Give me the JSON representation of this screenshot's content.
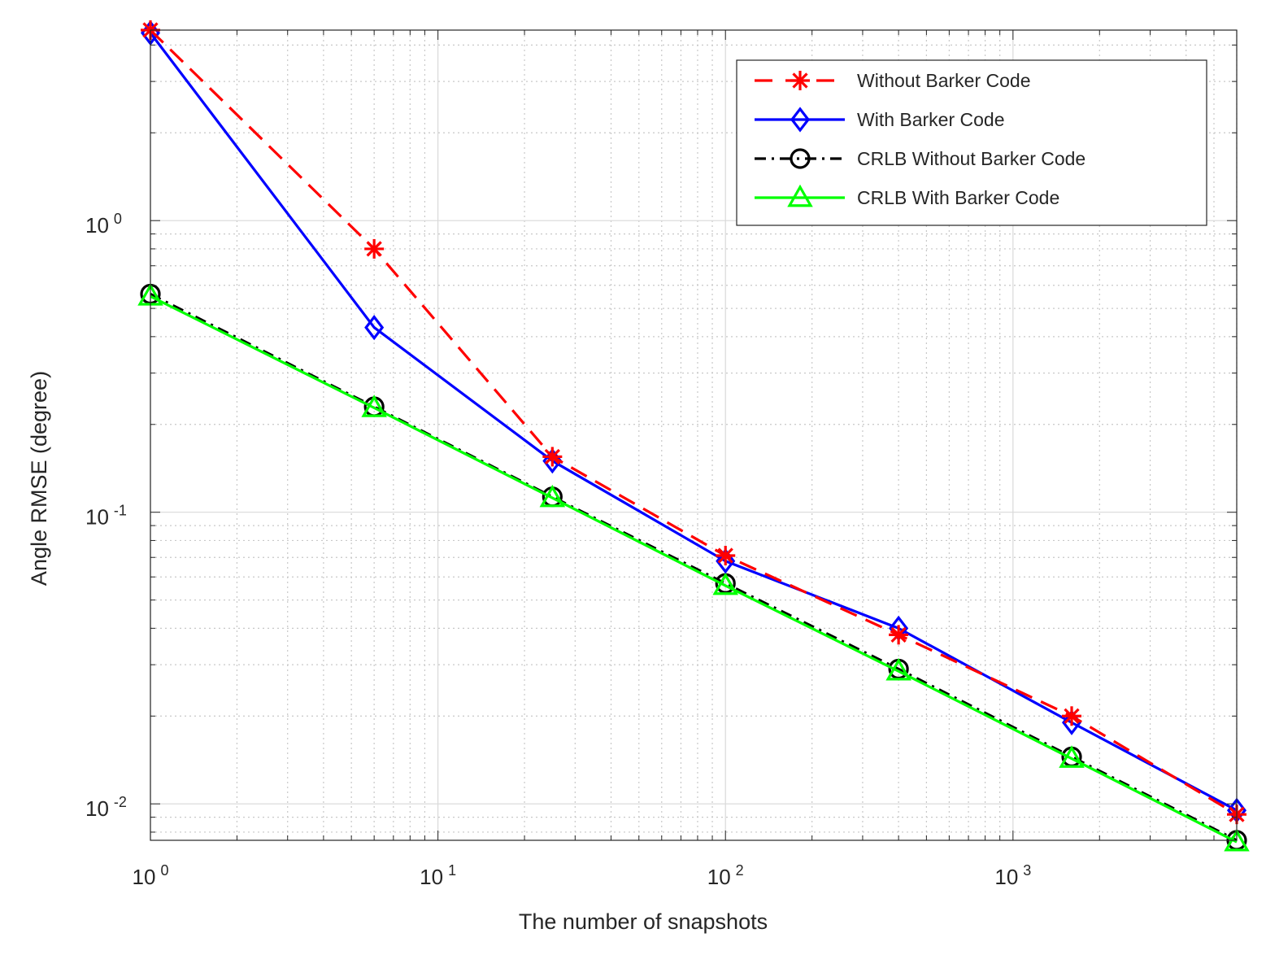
{
  "chart_data": {
    "type": "line",
    "xscale": "log",
    "yscale": "log",
    "xlabel": "The number of snapshots",
    "ylabel": "Angle RMSE (degree)",
    "xlim": [
      1,
      6000
    ],
    "ylim": [
      0.0075,
      4.5
    ],
    "grid": true,
    "legend_position": "top-right",
    "x": [
      1,
      6,
      25,
      100,
      400,
      1600,
      6000
    ],
    "x_tick_labels": [
      {
        "value": 1,
        "base": "10",
        "exp": "0"
      },
      {
        "value": 10,
        "base": "10",
        "exp": "1"
      },
      {
        "value": 100,
        "base": "10",
        "exp": "2"
      },
      {
        "value": 1000,
        "base": "10",
        "exp": "3"
      }
    ],
    "y_tick_labels": [
      {
        "value": 1,
        "base": "10",
        "exp": "0"
      },
      {
        "value": 0.1,
        "base": "10",
        "exp": "-1"
      },
      {
        "value": 0.01,
        "base": "10",
        "exp": "-2"
      }
    ],
    "series": [
      {
        "name": "Without Barker Code",
        "color": "#ff0000",
        "line": "dashed",
        "marker": "asterisk",
        "values": [
          4.5,
          0.8,
          0.155,
          0.071,
          0.038,
          0.02,
          0.0092
        ]
      },
      {
        "name": "With Barker Code",
        "color": "#0000ff",
        "line": "solid",
        "marker": "diamond",
        "values": [
          4.4,
          0.43,
          0.15,
          0.068,
          0.04,
          0.019,
          0.0095
        ]
      },
      {
        "name": "CRLB Without Barker Code",
        "color": "#000000",
        "line": "dashdot",
        "marker": "circle",
        "values": [
          0.56,
          0.23,
          0.113,
          0.057,
          0.029,
          0.0145,
          0.0075
        ]
      },
      {
        "name": "CRLB With Barker Code",
        "color": "#00ff00",
        "line": "solid",
        "marker": "triangle",
        "values": [
          0.55,
          0.228,
          0.112,
          0.056,
          0.0285,
          0.0143,
          0.0074
        ]
      }
    ]
  }
}
